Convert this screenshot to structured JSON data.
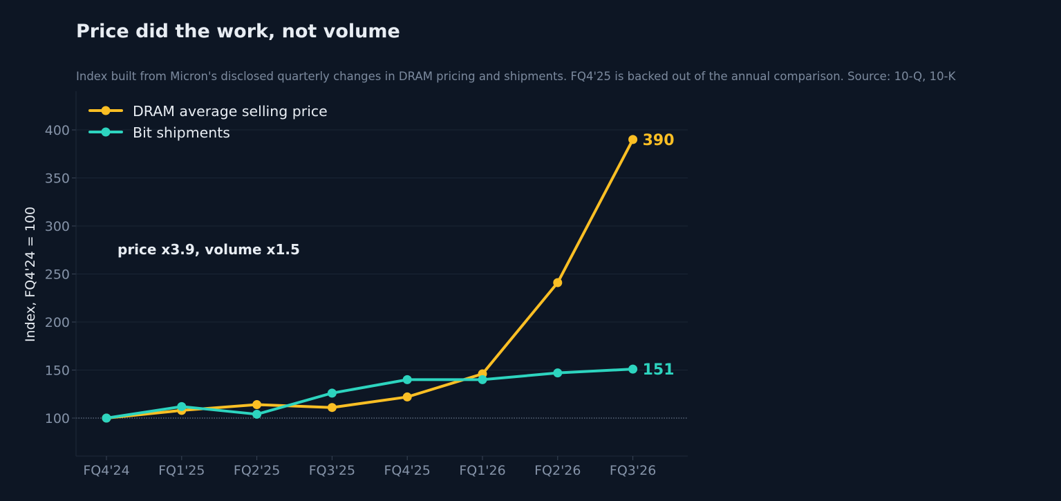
{
  "title": "Price did the work, not volume",
  "subtitle": "Index built from Micron's disclosed quarterly changes in DRAM pricing and shipments. FQ4'25 is backed out of the annual comparison. Source: 10-Q, 10-K",
  "chart_data": {
    "type": "line",
    "x": [
      "FQ4'24",
      "FQ1'25",
      "FQ2'25",
      "FQ3'25",
      "FQ4'25",
      "FQ1'26",
      "FQ2'26",
      "FQ3'26"
    ],
    "ylabel": "Index, FQ4'24 = 100",
    "ylim": [
      60,
      440
    ],
    "yticks": [
      100,
      150,
      200,
      250,
      300,
      350,
      400
    ],
    "grid": true,
    "baseline": 100,
    "legend_position": "top-left",
    "series": [
      {
        "name": "DRAM average selling price",
        "color": "#fbbf24",
        "values": [
          100,
          108,
          114,
          111,
          122,
          146,
          241,
          390
        ],
        "end_label": "390"
      },
      {
        "name": "Bit shipments",
        "color": "#2dd4bf",
        "values": [
          100,
          112,
          104,
          126,
          140,
          140,
          147,
          151
        ],
        "end_label": "151"
      }
    ],
    "annotation": "price x3.9, volume x1.5"
  }
}
